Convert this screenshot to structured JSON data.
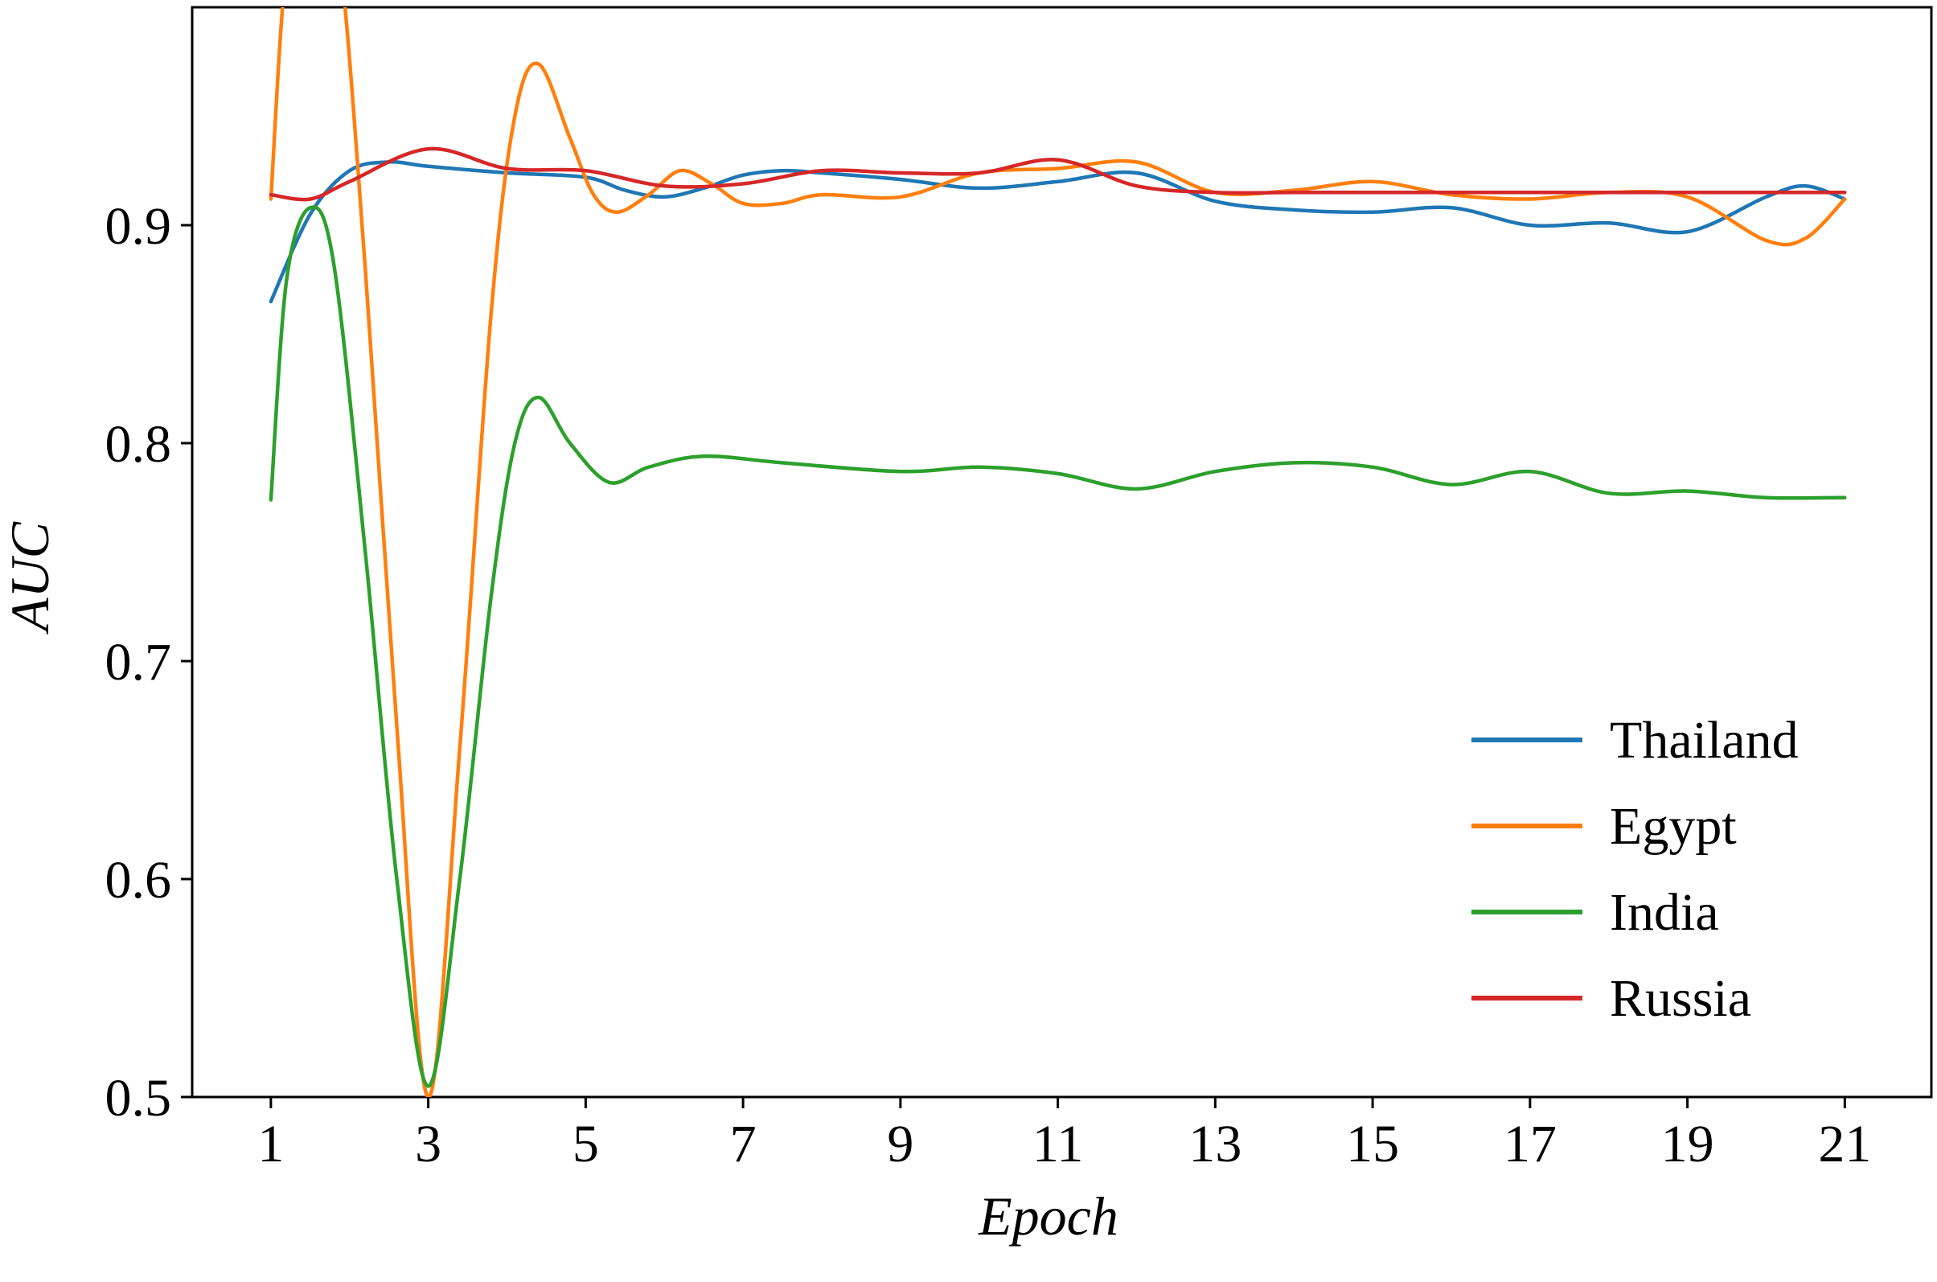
{
  "chart_data": {
    "type": "line",
    "xlabel": "Epoch",
    "ylabel": "AUC",
    "xlim": [
      0,
      22.1
    ],
    "ylim": [
      0.5,
      1.0
    ],
    "x_ticks": [
      1,
      3,
      5,
      7,
      9,
      11,
      13,
      15,
      17,
      19,
      21
    ],
    "y_ticks": [
      0.5,
      0.6,
      0.7,
      0.8,
      0.9
    ],
    "x_tick_labels": [
      "1",
      "3",
      "5",
      "7",
      "9",
      "11",
      "13",
      "15",
      "17",
      "19",
      "21"
    ],
    "y_tick_labels": [
      "0.5",
      "0.6",
      "0.7",
      "0.8",
      "0.9"
    ],
    "legend_position": "lower-right",
    "grid": false,
    "series": [
      {
        "name": "Thailand",
        "color": "#1f77b4",
        "points": [
          [
            1,
            0.865
          ],
          [
            1.5,
            0.905
          ],
          [
            2,
            0.925
          ],
          [
            2.5,
            0.929
          ],
          [
            3,
            0.927
          ],
          [
            4,
            0.924
          ],
          [
            5,
            0.922
          ],
          [
            5.5,
            0.916
          ],
          [
            6,
            0.913
          ],
          [
            6.5,
            0.917
          ],
          [
            7,
            0.923
          ],
          [
            7.5,
            0.925
          ],
          [
            8,
            0.924
          ],
          [
            9,
            0.921
          ],
          [
            10,
            0.917
          ],
          [
            11,
            0.92
          ],
          [
            12,
            0.924
          ],
          [
            13,
            0.911
          ],
          [
            14,
            0.907
          ],
          [
            15,
            0.906
          ],
          [
            16,
            0.908
          ],
          [
            17,
            0.9
          ],
          [
            18,
            0.901
          ],
          [
            19,
            0.897
          ],
          [
            20,
            0.913
          ],
          [
            20.5,
            0.918
          ],
          [
            21,
            0.912
          ]
        ]
      },
      {
        "name": "Egypt",
        "color": "#ff7f0e",
        "points": [
          [
            1,
            0.912
          ],
          [
            1.2,
            1.02
          ],
          [
            1.5,
            1.06
          ],
          [
            1.85,
            1.03
          ],
          [
            2.2,
            0.88
          ],
          [
            2.6,
            0.67
          ],
          [
            3,
            0.5
          ],
          [
            3.4,
            0.66
          ],
          [
            3.8,
            0.86
          ],
          [
            4.1,
            0.95
          ],
          [
            4.4,
            0.974
          ],
          [
            4.8,
            0.94
          ],
          [
            5.1,
            0.914
          ],
          [
            5.4,
            0.906
          ],
          [
            5.8,
            0.914
          ],
          [
            6.2,
            0.925
          ],
          [
            6.6,
            0.919
          ],
          [
            7,
            0.91
          ],
          [
            7.5,
            0.91
          ],
          [
            8,
            0.914
          ],
          [
            9,
            0.913
          ],
          [
            10,
            0.924
          ],
          [
            11,
            0.926
          ],
          [
            12,
            0.929
          ],
          [
            13,
            0.915
          ],
          [
            14,
            0.916
          ],
          [
            15,
            0.92
          ],
          [
            16,
            0.914
          ],
          [
            17,
            0.912
          ],
          [
            18,
            0.915
          ],
          [
            19,
            0.913
          ],
          [
            20,
            0.893
          ],
          [
            20.5,
            0.894
          ],
          [
            21,
            0.912
          ]
        ]
      },
      {
        "name": "India",
        "color": "#2ca02c",
        "points": [
          [
            1,
            0.774
          ],
          [
            1.2,
            0.875
          ],
          [
            1.5,
            0.908
          ],
          [
            1.8,
            0.882
          ],
          [
            2.2,
            0.75
          ],
          [
            2.6,
            0.6
          ],
          [
            3,
            0.505
          ],
          [
            3.4,
            0.6
          ],
          [
            3.8,
            0.73
          ],
          [
            4.1,
            0.8
          ],
          [
            4.4,
            0.821
          ],
          [
            4.8,
            0.8
          ],
          [
            5.3,
            0.782
          ],
          [
            5.8,
            0.789
          ],
          [
            6.5,
            0.794
          ],
          [
            7.5,
            0.791
          ],
          [
            9,
            0.787
          ],
          [
            10,
            0.789
          ],
          [
            11,
            0.786
          ],
          [
            12,
            0.779
          ],
          [
            13,
            0.787
          ],
          [
            14,
            0.791
          ],
          [
            15,
            0.789
          ],
          [
            16,
            0.781
          ],
          [
            17,
            0.787
          ],
          [
            18,
            0.777
          ],
          [
            19,
            0.778
          ],
          [
            20,
            0.775
          ],
          [
            21,
            0.775
          ]
        ]
      },
      {
        "name": "Russia",
        "color": "#d62728",
        "points": [
          [
            1,
            0.914
          ],
          [
            1.5,
            0.912
          ],
          [
            2,
            0.92
          ],
          [
            3,
            0.935
          ],
          [
            4,
            0.926
          ],
          [
            5,
            0.925
          ],
          [
            6,
            0.918
          ],
          [
            7,
            0.919
          ],
          [
            8,
            0.925
          ],
          [
            9,
            0.924
          ],
          [
            10,
            0.924
          ],
          [
            11,
            0.93
          ],
          [
            12,
            0.918
          ],
          [
            13,
            0.915
          ],
          [
            14,
            0.915
          ],
          [
            15,
            0.915
          ],
          [
            16,
            0.915
          ],
          [
            17,
            0.915
          ],
          [
            18,
            0.915
          ],
          [
            19,
            0.915
          ],
          [
            20,
            0.915
          ],
          [
            21,
            0.915
          ]
        ]
      }
    ]
  }
}
